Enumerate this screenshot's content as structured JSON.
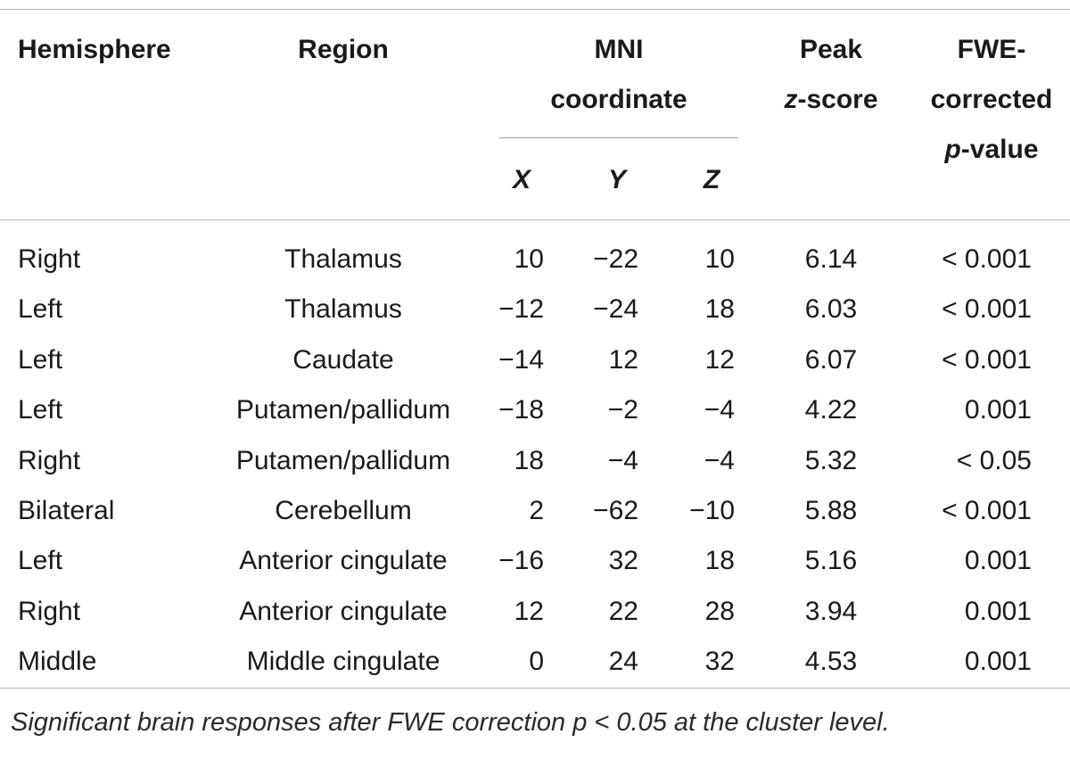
{
  "table": {
    "headers": {
      "hemisphere": "Hemisphere",
      "region": "Region",
      "mni_line1": "MNI",
      "mni_line2": "coordinate",
      "x": "X",
      "y": "Y",
      "z": "Z",
      "peak_line1": "Peak",
      "peak_z": "z",
      "peak_score": "-score",
      "fwe_line1": "FWE-",
      "fwe_line2": "corrected",
      "fwe_p": "p",
      "fwe_value": "-value"
    },
    "rows": [
      {
        "hemisphere": "Right",
        "region": "Thalamus",
        "x": "10",
        "y": "−22",
        "z": "10",
        "z_score": "6.14",
        "p_value": "< 0.001"
      },
      {
        "hemisphere": "Left",
        "region": "Thalamus",
        "x": "−12",
        "y": "−24",
        "z": "18",
        "z_score": "6.03",
        "p_value": "< 0.001"
      },
      {
        "hemisphere": "Left",
        "region": "Caudate",
        "x": "−14",
        "y": "12",
        "z": "12",
        "z_score": "6.07",
        "p_value": "< 0.001"
      },
      {
        "hemisphere": "Left",
        "region": "Putamen/pallidum",
        "x": "−18",
        "y": "−2",
        "z": "−4",
        "z_score": "4.22",
        "p_value": "0.001"
      },
      {
        "hemisphere": "Right",
        "region": "Putamen/pallidum",
        "x": "18",
        "y": "−4",
        "z": "−4",
        "z_score": "5.32",
        "p_value": "< 0.05"
      },
      {
        "hemisphere": "Bilateral",
        "region": "Cerebellum",
        "x": "2",
        "y": "−62",
        "z": "−10",
        "z_score": "5.88",
        "p_value": "< 0.001"
      },
      {
        "hemisphere": "Left",
        "region": "Anterior cingulate",
        "x": "−16",
        "y": "32",
        "z": "18",
        "z_score": "5.16",
        "p_value": "0.001"
      },
      {
        "hemisphere": "Right",
        "region": "Anterior cingulate",
        "x": "12",
        "y": "22",
        "z": "28",
        "z_score": "3.94",
        "p_value": "0.001"
      },
      {
        "hemisphere": "Middle",
        "region": "Middle cingulate",
        "x": "0",
        "y": "24",
        "z": "32",
        "z_score": "4.53",
        "p_value": "0.001"
      }
    ]
  },
  "caption": "Significant brain responses after FWE correction p < 0.05 at the cluster level."
}
